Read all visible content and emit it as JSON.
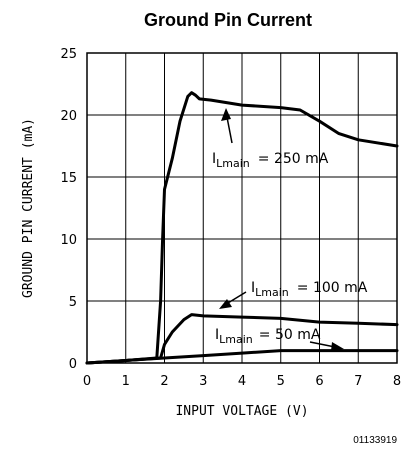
{
  "chart_data": {
    "type": "line",
    "title": "Ground Pin Current",
    "xlabel": "INPUT VOLTAGE (V)",
    "ylabel": "GROUND PIN CURRENT (mA)",
    "xlim": [
      0,
      8
    ],
    "ylim": [
      0,
      25
    ],
    "x_ticks": [
      "0",
      "1",
      "2",
      "3",
      "4",
      "5",
      "6",
      "7",
      "8"
    ],
    "y_ticks": [
      "0",
      "5",
      "10",
      "15",
      "20",
      "25"
    ],
    "grid": true,
    "series": [
      {
        "name": "ILmain = 250 mA",
        "label_main": "I",
        "label_sub": "Lmain",
        "label_rest": "= 250 mA",
        "points": [
          [
            0,
            0
          ],
          [
            1,
            0.2
          ],
          [
            1.8,
            0.4
          ],
          [
            1.9,
            5
          ],
          [
            1.95,
            10
          ],
          [
            2.0,
            14
          ],
          [
            2.2,
            16.5
          ],
          [
            2.4,
            19.5
          ],
          [
            2.6,
            21.5
          ],
          [
            2.7,
            21.8
          ],
          [
            2.8,
            21.6
          ],
          [
            2.9,
            21.3
          ],
          [
            3.2,
            21.2
          ],
          [
            4,
            20.8
          ],
          [
            5,
            20.6
          ],
          [
            5.5,
            20.4
          ],
          [
            6,
            19.5
          ],
          [
            6.5,
            18.5
          ],
          [
            7,
            18
          ],
          [
            8,
            17.5
          ]
        ]
      },
      {
        "name": "ILmain = 100 mA",
        "label_main": "I",
        "label_sub": "Lmain",
        "label_rest": "= 100 mA",
        "points": [
          [
            0,
            0
          ],
          [
            1,
            0.2
          ],
          [
            1.9,
            0.4
          ],
          [
            2.0,
            1.5
          ],
          [
            2.2,
            2.5
          ],
          [
            2.5,
            3.5
          ],
          [
            2.7,
            3.9
          ],
          [
            3,
            3.8
          ],
          [
            4,
            3.7
          ],
          [
            5,
            3.6
          ],
          [
            6,
            3.3
          ],
          [
            7,
            3.2
          ],
          [
            8,
            3.1
          ]
        ]
      },
      {
        "name": "ILmain = 50 mA",
        "label_main": "I",
        "label_sub": "Lmain",
        "label_rest": "= 50 mA",
        "points": [
          [
            0,
            0
          ],
          [
            1,
            0.2
          ],
          [
            2,
            0.4
          ],
          [
            3,
            0.6
          ],
          [
            4,
            0.8
          ],
          [
            5,
            1.0
          ],
          [
            6,
            1.0
          ],
          [
            7,
            1.0
          ],
          [
            8,
            1.0
          ]
        ]
      }
    ],
    "figure_code": "01133919"
  }
}
